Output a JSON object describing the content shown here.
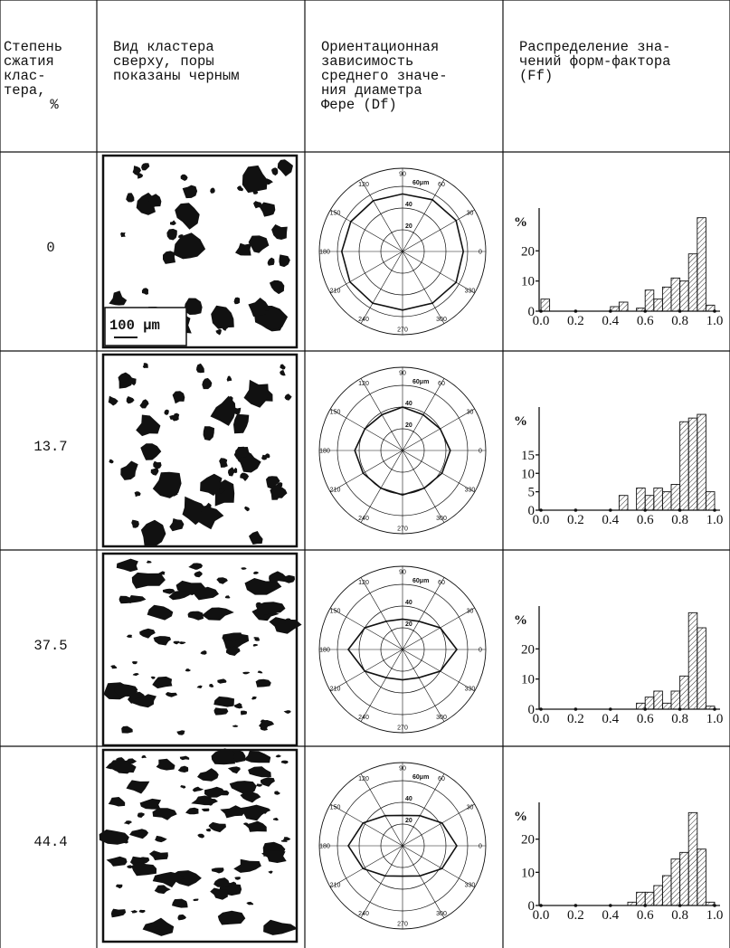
{
  "header": [
    [
      "Степень",
      "сжатия",
      "клас-",
      "тера,",
      "%"
    ],
    [
      "Вид кластера",
      "сверху, поры",
      "показаны черным"
    ],
    [
      "Ориентационная",
      "зависимость",
      "среднего значе-",
      "ния диаметра",
      "Фере (Df)"
    ],
    [
      "Распределение зна-",
      "чений форм-фактора",
      "(Ff)"
    ]
  ],
  "scale_bar": "100 μm",
  "polar_axes": {
    "angles": [
      0,
      30,
      60,
      90,
      120,
      150,
      180,
      210,
      240,
      270,
      300,
      330
    ],
    "rlim": [
      0,
      60
    ],
    "rticks": [
      20,
      40,
      {
        "value": 60,
        "label": "60μm"
      }
    ]
  },
  "rows": [
    {
      "compression": "0",
      "polar": {
        "type": "polar",
        "r": [
          56,
          57,
          55,
          53,
          54,
          55,
          56,
          56,
          55,
          54,
          55,
          57
        ]
      },
      "histogram": {
        "type": "histogram",
        "ylabel": "%",
        "bins": [
          0,
          0.05,
          0.1,
          0.15,
          0.2,
          0.25,
          0.3,
          0.35,
          0.4,
          0.45,
          0.5,
          0.55,
          0.6,
          0.65,
          0.7,
          0.75,
          0.8,
          0.85,
          0.9,
          0.95,
          1.0
        ],
        "values": [
          4,
          0,
          0,
          0,
          0,
          0,
          0,
          0,
          1.5,
          3,
          0,
          1,
          7,
          4,
          8,
          11,
          10,
          19,
          31,
          2
        ],
        "xlim": [
          0,
          1.0
        ],
        "ylim": [
          0,
          33
        ],
        "yticks": [
          0,
          10,
          20
        ],
        "xticks": [
          {
            "value": 0,
            "label": "0.0"
          },
          0.2,
          0.4,
          0.6,
          0.8,
          {
            "value": 1.0,
            "label": "1.0"
          }
        ]
      }
    },
    {
      "compression": "13.7",
      "polar": {
        "type": "polar",
        "r": [
          44,
          40,
          38,
          40,
          38,
          40,
          44,
          42,
          40,
          41,
          40,
          42
        ]
      },
      "histogram": {
        "type": "histogram",
        "ylabel": "%",
        "bins": [
          0,
          0.05,
          0.1,
          0.15,
          0.2,
          0.25,
          0.3,
          0.35,
          0.4,
          0.45,
          0.5,
          0.55,
          0.6,
          0.65,
          0.7,
          0.75,
          0.8,
          0.85,
          0.9,
          0.95,
          1.0
        ],
        "values": [
          0,
          0,
          0,
          0,
          0,
          0,
          0,
          0,
          0,
          4,
          0,
          6,
          4,
          6,
          5,
          7,
          24,
          25,
          26,
          5
        ],
        "xlim": [
          0,
          1.0
        ],
        "ylim": [
          0,
          27
        ],
        "yticks": [
          0,
          5,
          10,
          15
        ],
        "xticks": [
          {
            "value": 0,
            "label": "0.0"
          },
          0.2,
          0.4,
          0.6,
          0.8,
          {
            "value": 1.0,
            "label": "1.0"
          }
        ]
      }
    },
    {
      "compression": "37.5",
      "polar": {
        "type": "polar",
        "r": [
          50,
          40,
          30,
          28,
          30,
          40,
          50,
          40,
          30,
          28,
          30,
          40
        ]
      },
      "histogram": {
        "type": "histogram",
        "ylabel": "%",
        "bins": [
          0,
          0.05,
          0.1,
          0.15,
          0.2,
          0.25,
          0.3,
          0.35,
          0.4,
          0.45,
          0.5,
          0.55,
          0.6,
          0.65,
          0.7,
          0.75,
          0.8,
          0.85,
          0.9,
          0.95,
          1.0
        ],
        "values": [
          0,
          0,
          0,
          0,
          0,
          0,
          0,
          0,
          0,
          0,
          0,
          2,
          4,
          6,
          2,
          6,
          11,
          32,
          27,
          1
        ],
        "xlim": [
          0,
          1.0
        ],
        "ylim": [
          0,
          33
        ],
        "yticks": [
          0,
          10,
          20
        ],
        "xticks": [
          {
            "value": 0,
            "label": "0.0"
          },
          0.2,
          0.4,
          0.6,
          0.8,
          {
            "value": 1.0,
            "label": "1.0"
          }
        ]
      }
    },
    {
      "compression": "44.4",
      "polar": {
        "type": "polar",
        "r": [
          50,
          42,
          32,
          28,
          32,
          42,
          50,
          42,
          32,
          28,
          32,
          42
        ]
      },
      "histogram": {
        "type": "histogram",
        "ylabel": "%",
        "bins": [
          0,
          0.05,
          0.1,
          0.15,
          0.2,
          0.25,
          0.3,
          0.35,
          0.4,
          0.45,
          0.5,
          0.55,
          0.6,
          0.65,
          0.7,
          0.75,
          0.8,
          0.85,
          0.9,
          0.95,
          1.0
        ],
        "values": [
          0,
          0,
          0,
          0,
          0,
          0,
          0,
          0,
          0,
          0,
          1,
          4,
          4,
          6,
          9,
          14,
          16,
          28,
          17,
          1
        ],
        "xlim": [
          0,
          1.0
        ],
        "ylim": [
          0,
          30
        ],
        "yticks": [
          0,
          10,
          20
        ],
        "xticks": [
          {
            "value": 0,
            "label": "0.0"
          },
          0.2,
          0.4,
          0.6,
          0.8,
          {
            "value": 1.0,
            "label": "1.0"
          }
        ]
      }
    }
  ]
}
